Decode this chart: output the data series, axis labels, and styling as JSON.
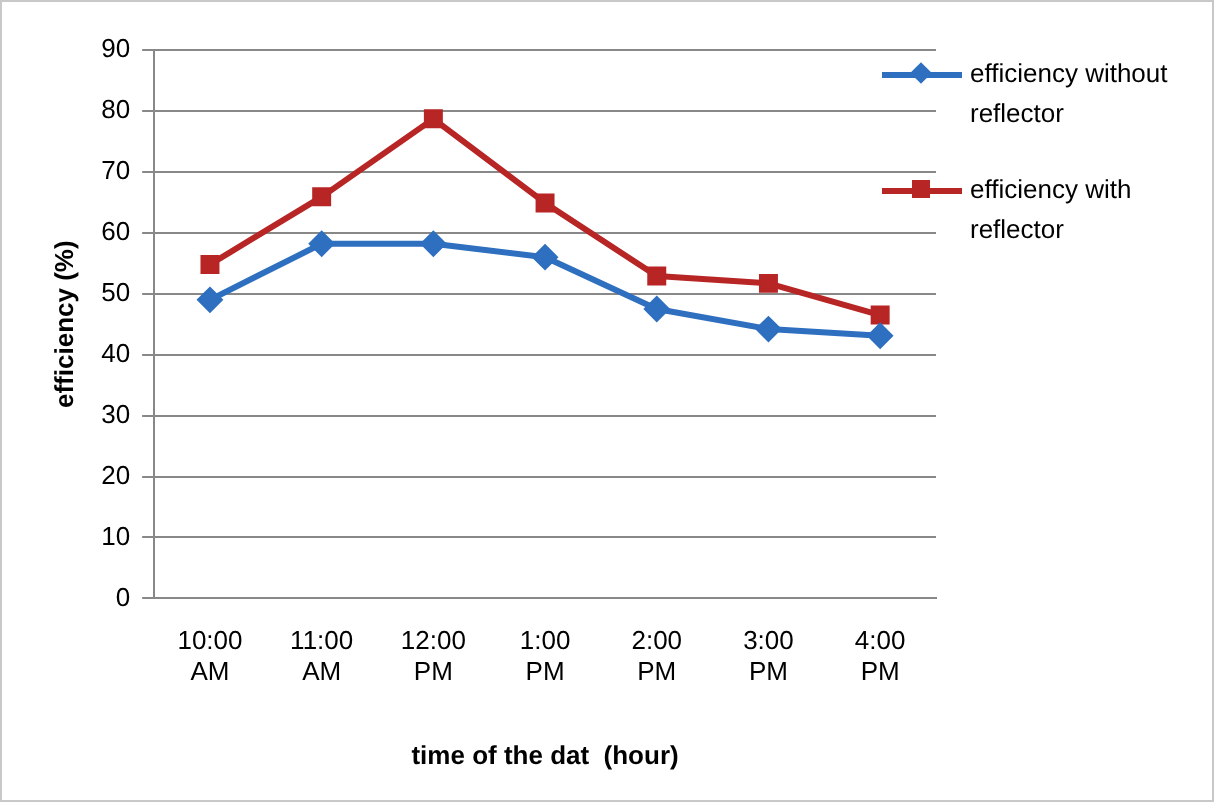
{
  "chart_data": {
    "type": "line",
    "xlabel": "time of the dat  (hour)",
    "ylabel": "efficiency (%)",
    "categories": [
      "10:00 AM",
      "11:00 AM",
      "12:00 PM",
      "1:00 PM",
      "2:00 PM",
      "3:00 PM",
      "4:00 PM"
    ],
    "series": [
      {
        "name": "efficiency without reflector",
        "color": "#2e6fc0",
        "marker": "diamond",
        "values": [
          49,
          58.2,
          58.2,
          56,
          47.5,
          44.2,
          43.1
        ]
      },
      {
        "name": "efficiency with reflector",
        "color": "#b82525",
        "marker": "square",
        "values": [
          54.8,
          65.9,
          78.7,
          64.9,
          52.9,
          51.7,
          46.5
        ]
      }
    ],
    "ylim": [
      0,
      90
    ],
    "yticks": [
      0,
      10,
      20,
      30,
      40,
      50,
      60,
      70,
      80,
      90
    ],
    "grid": "y",
    "legend": "right",
    "line_style": "solid"
  }
}
